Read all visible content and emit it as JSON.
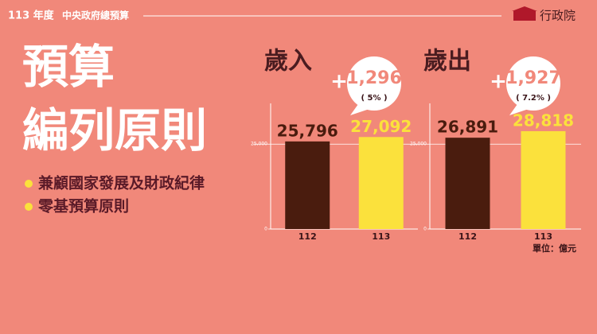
{
  "header": {
    "year": "113 年度",
    "title": "中央政府總預算",
    "logo": "行政院"
  },
  "headline": [
    "預算",
    "編列原則"
  ],
  "bullets": [
    "兼顧國家發展及財政紀律",
    "零基預算原則"
  ],
  "unit": "單位：億元",
  "chart_data": [
    {
      "type": "bar",
      "title": "歲入",
      "annotation_sign": "+",
      "annotation": "1,296",
      "annotation_note": "( 5% )",
      "categories": [
        "112",
        "113"
      ],
      "values": [
        25796,
        27092
      ],
      "value_labels": [
        "25,796",
        "27,092"
      ],
      "colors": [
        "#4a1c0e",
        "#fbe13c"
      ],
      "ylim": [
        0,
        37000
      ],
      "yticks": [
        0,
        {
          "value": 25000,
          "label": "25,000"
        }
      ]
    },
    {
      "type": "bar",
      "title": "歲出",
      "annotation_sign": "+",
      "annotation": "1,927",
      "annotation_note": "( 7.2% )",
      "categories": [
        "112",
        "113"
      ],
      "values": [
        26891,
        28818
      ],
      "value_labels": [
        "26,891",
        "28,818"
      ],
      "colors": [
        "#4a1c0e",
        "#fbe13c"
      ],
      "ylim": [
        0,
        37000
      ],
      "yticks": [
        0,
        {
          "value": 25000,
          "label": "25,000"
        }
      ]
    }
  ]
}
